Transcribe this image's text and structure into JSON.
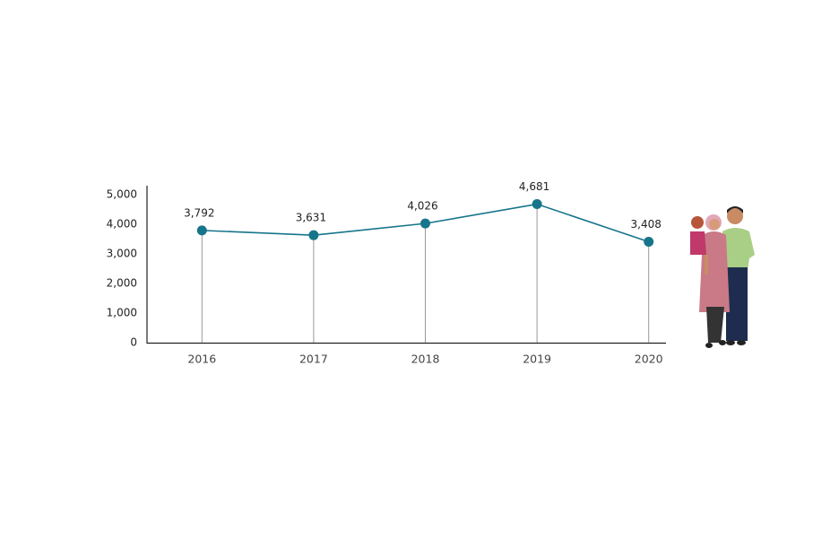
{
  "chart_data": {
    "type": "line",
    "categories": [
      "2016",
      "2017",
      "2018",
      "2019",
      "2020"
    ],
    "values": [
      3792,
      3631,
      4026,
      4681,
      3408
    ],
    "value_labels": [
      "3,792",
      "3,631",
      "4,026",
      "4,681",
      "3,408"
    ],
    "color": "#16758a",
    "drop_line_color": "#9a9a9a",
    "ylim": [
      0,
      5000
    ],
    "yticks": [
      0,
      {
        "value": 1000,
        "label": "1,000"
      },
      {
        "value": 2000,
        "label": "2,000"
      },
      {
        "value": 3000,
        "label": "3,000"
      },
      {
        "value": 4000,
        "label": "4,000"
      },
      {
        "value": 5000,
        "label": "5,000"
      }
    ],
    "grid": false
  }
}
